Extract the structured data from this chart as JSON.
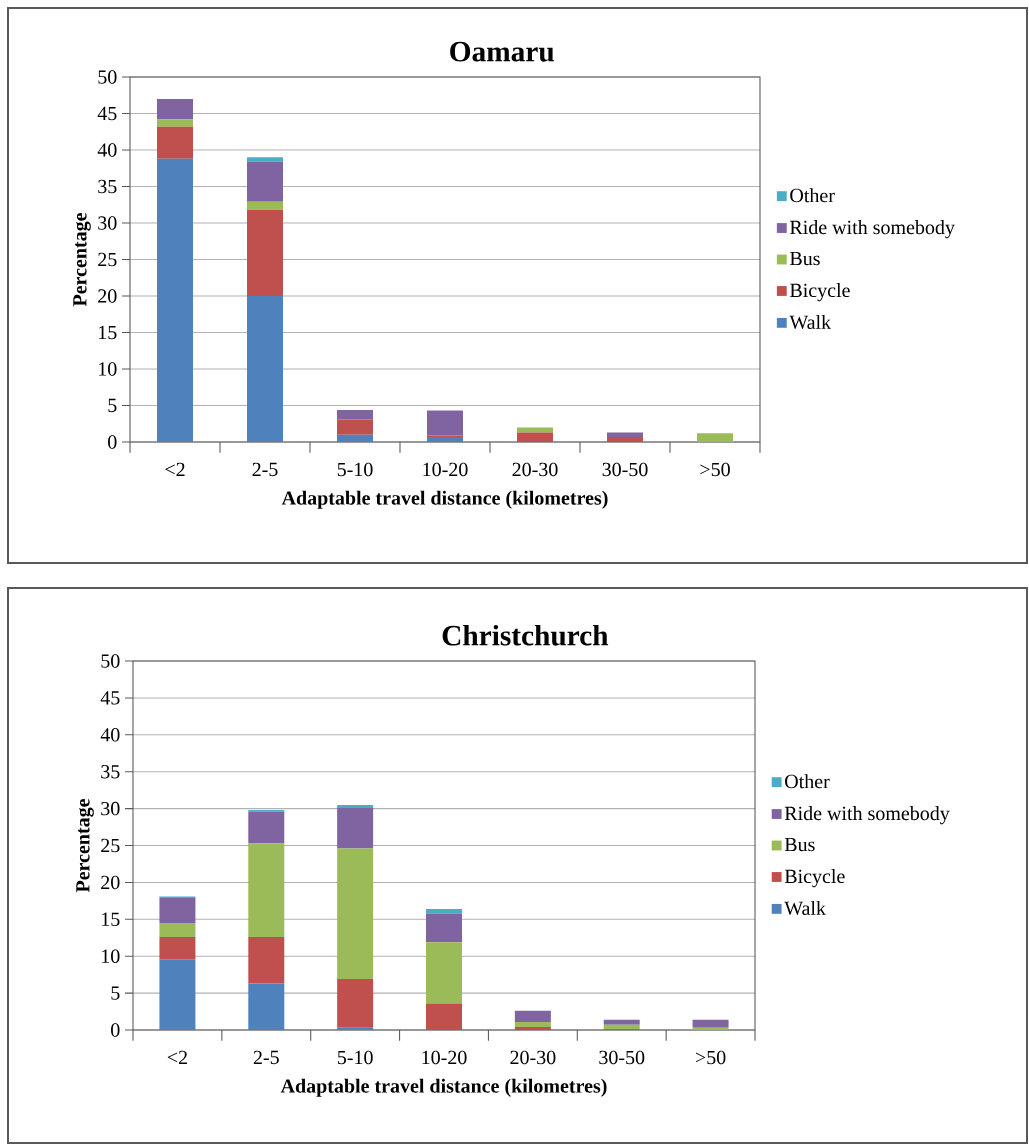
{
  "chart_data": [
    {
      "type": "bar",
      "stacked": true,
      "title": "Oamaru",
      "xlabel": "Adaptable travel distance (kilometres)",
      "ylabel": "Percentage",
      "categories": [
        "<2",
        "2-5",
        "5-10",
        "10-20",
        "20-30",
        "30-50",
        ">50"
      ],
      "series": [
        {
          "name": "Walk",
          "color": "#4f81bd",
          "values": [
            38.8,
            20.0,
            1.0,
            0.7,
            0,
            0,
            0
          ]
        },
        {
          "name": "Bicycle",
          "color": "#c0504d",
          "values": [
            4.4,
            11.8,
            2.1,
            0.2,
            1.3,
            0.7,
            0
          ]
        },
        {
          "name": "Bus",
          "color": "#9bbb59",
          "values": [
            1.0,
            1.1,
            0,
            0,
            0.7,
            0,
            1.2
          ]
        },
        {
          "name": "Ride with somebody",
          "color": "#8064a2",
          "values": [
            2.8,
            5.5,
            1.3,
            3.4,
            0,
            0.6,
            0
          ]
        },
        {
          "name": "Other",
          "color": "#4bacc6",
          "values": [
            0,
            0.6,
            0,
            0,
            0,
            0,
            0
          ]
        }
      ],
      "ylim": [
        0,
        50
      ],
      "yticks": [
        0,
        5,
        10,
        15,
        20,
        25,
        30,
        35,
        40,
        45,
        50
      ],
      "grid": "y",
      "legend": "right"
    },
    {
      "type": "bar",
      "stacked": true,
      "title": "Christchurch",
      "xlabel": "Adaptable travel distance (kilometres)",
      "ylabel": "Percentage",
      "categories": [
        "<2",
        "2-5",
        "5-10",
        "10-20",
        "20-30",
        "30-50",
        ">50"
      ],
      "series": [
        {
          "name": "Walk",
          "color": "#4f81bd",
          "values": [
            9.6,
            6.3,
            0.3,
            0,
            0,
            0,
            0
          ]
        },
        {
          "name": "Bicycle",
          "color": "#c0504d",
          "values": [
            3.0,
            6.3,
            6.6,
            3.6,
            0.4,
            0.1,
            0
          ]
        },
        {
          "name": "Bus",
          "color": "#9bbb59",
          "values": [
            1.9,
            12.7,
            17.7,
            8.3,
            0.7,
            0.6,
            0.3
          ]
        },
        {
          "name": "Ride with somebody",
          "color": "#8064a2",
          "values": [
            3.4,
            4.3,
            5.6,
            3.9,
            1.5,
            0.7,
            1.1
          ]
        },
        {
          "name": "Other",
          "color": "#4bacc6",
          "values": [
            0.2,
            0.2,
            0.3,
            0.6,
            0,
            0,
            0
          ]
        }
      ],
      "ylim": [
        0,
        50
      ],
      "yticks": [
        0,
        5,
        10,
        15,
        20,
        25,
        30,
        35,
        40,
        45,
        50
      ],
      "grid": "y",
      "legend": "right"
    }
  ]
}
